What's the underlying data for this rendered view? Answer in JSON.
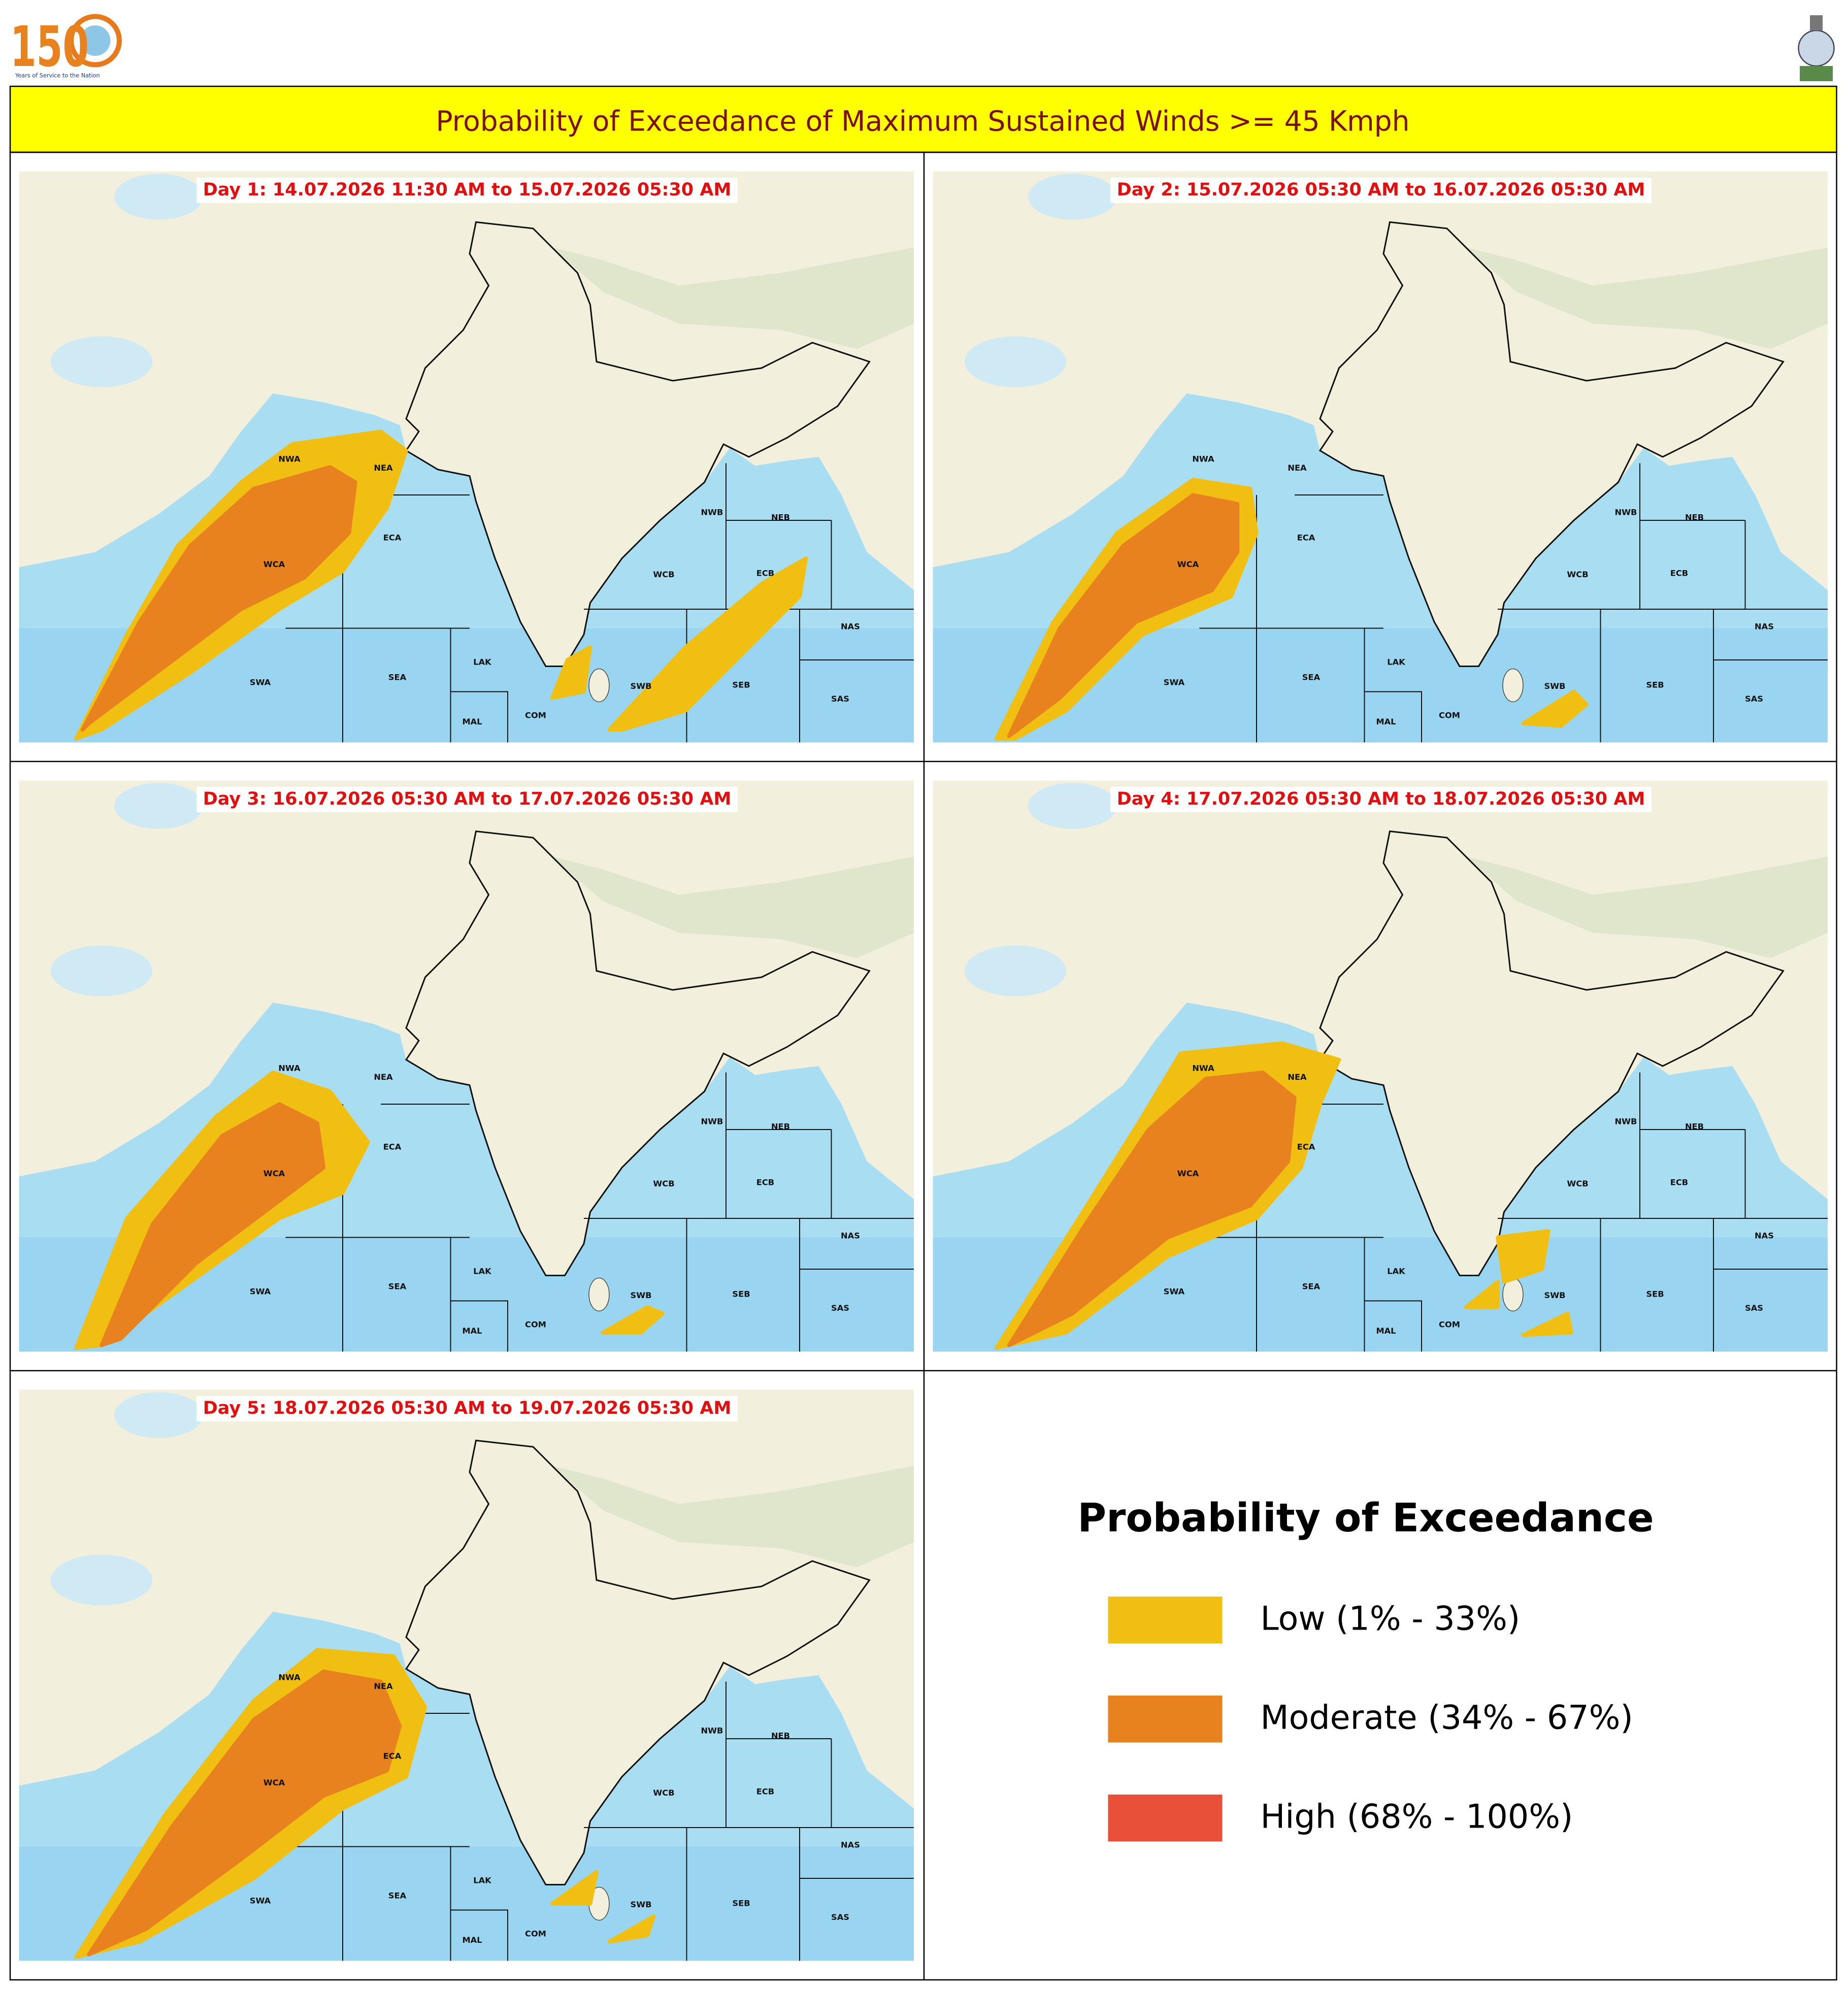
{
  "header": {
    "logo_text": "150",
    "logo_caption": "Years of Service to the Nation",
    "title": "Probability of Exceedance of Maximum Sustained Winds >= 45 Kmph"
  },
  "region_labels": [
    "NWA",
    "NEA",
    "WCA",
    "ECA",
    "SWA",
    "SEA",
    "LAK",
    "MAL",
    "COM",
    "SWB",
    "SEB",
    "NWB",
    "NEB",
    "ECB",
    "WCB",
    "NAS",
    "SAS"
  ],
  "panels": [
    {
      "label": "Day 1: 14.07.2026 11:30 AM to 15.07.2026 05:30 AM"
    },
    {
      "label": "Day 2: 15.07.2026 05:30 AM to 16.07.2026 05:30 AM"
    },
    {
      "label": "Day 3: 16.07.2026 05:30 AM to 17.07.2026 05:30 AM"
    },
    {
      "label": "Day 4: 17.07.2026 05:30 AM to 18.07.2026 05:30 AM"
    },
    {
      "label": "Day 5: 18.07.2026 05:30 AM to 19.07.2026 05:30 AM"
    }
  ],
  "legend": {
    "title": "Probability of Exceedance",
    "items": [
      {
        "label": "Low (1% - 33%)",
        "color": "#f0bf12"
      },
      {
        "label": "Moderate (34% - 67%)",
        "color": "#e8821e"
      },
      {
        "label": "High (68% - 100%)",
        "color": "#e8503a"
      }
    ]
  }
}
